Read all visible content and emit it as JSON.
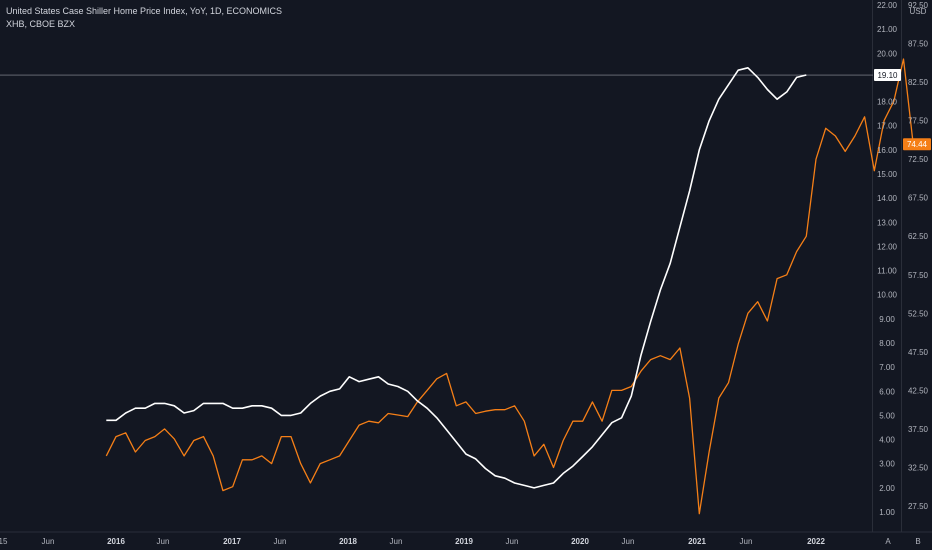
{
  "header": {
    "title": "United States Case Shiller Home Price Index, YoY, 1D, ECONOMICS",
    "subtitle": "XHB, CBOE BZX"
  },
  "colors": {
    "background": "#131722",
    "case_shiller": "#ffffff",
    "xhb": "#f57f17",
    "axis_text": "#b2b5be"
  },
  "chart_data": {
    "type": "line",
    "left_axis_ticks": [
      "22.00",
      "21.00",
      "20.00",
      "19.00",
      "18.00",
      "17.00",
      "16.00",
      "15.00",
      "14.00",
      "13.00",
      "12.00",
      "11.00",
      "10.00",
      "9.00",
      "8.00",
      "7.00",
      "6.00",
      "5.00",
      "4.00",
      "3.00",
      "2.00",
      "1.00"
    ],
    "right_axis_ticks": [
      "92.50",
      "87.50",
      "82.50",
      "77.50",
      "72.50",
      "67.50",
      "62.50",
      "57.50",
      "52.50",
      "47.50",
      "42.50",
      "37.50",
      "32.50",
      "27.50"
    ],
    "right_axis_unit": "USD",
    "x_tick_labels": [
      "15",
      "Jun",
      "2016",
      "Jun",
      "2017",
      "Jun",
      "2018",
      "Jun",
      "2019",
      "Jun",
      "2020",
      "Jun",
      "2021",
      "Jun",
      "2022"
    ],
    "bottom_right_labels": [
      "A",
      "B"
    ],
    "ylim_left": [
      0.5,
      22.3
    ],
    "ylim_right": [
      23.0,
      92.8
    ],
    "series": [
      {
        "name": "United States Case Shiller Home Price Index, YoY",
        "axis": "left",
        "last_value_label": "19.10",
        "points": [
          [
            "2015-12",
            4.8
          ],
          [
            "2016-01",
            4.8
          ],
          [
            "2016-02",
            5.1
          ],
          [
            "2016-03",
            5.3
          ],
          [
            "2016-04",
            5.3
          ],
          [
            "2016-05",
            5.5
          ],
          [
            "2016-06",
            5.5
          ],
          [
            "2016-07",
            5.4
          ],
          [
            "2016-08",
            5.1
          ],
          [
            "2016-09",
            5.2
          ],
          [
            "2016-10",
            5.5
          ],
          [
            "2016-11",
            5.5
          ],
          [
            "2016-12",
            5.5
          ],
          [
            "2017-01",
            5.3
          ],
          [
            "2017-02",
            5.3
          ],
          [
            "2017-03",
            5.4
          ],
          [
            "2017-04",
            5.4
          ],
          [
            "2017-05",
            5.3
          ],
          [
            "2017-06",
            5.0
          ],
          [
            "2017-07",
            5.0
          ],
          [
            "2017-08",
            5.1
          ],
          [
            "2017-09",
            5.5
          ],
          [
            "2017-10",
            5.8
          ],
          [
            "2017-11",
            6.0
          ],
          [
            "2017-12",
            6.1
          ],
          [
            "2018-01",
            6.6
          ],
          [
            "2018-02",
            6.4
          ],
          [
            "2018-03",
            6.5
          ],
          [
            "2018-04",
            6.6
          ],
          [
            "2018-05",
            6.3
          ],
          [
            "2018-06",
            6.2
          ],
          [
            "2018-07",
            6.0
          ],
          [
            "2018-08",
            5.6
          ],
          [
            "2018-09",
            5.3
          ],
          [
            "2018-10",
            4.9
          ],
          [
            "2018-11",
            4.4
          ],
          [
            "2018-12",
            3.9
          ],
          [
            "2019-01",
            3.4
          ],
          [
            "2019-02",
            3.2
          ],
          [
            "2019-03",
            2.8
          ],
          [
            "2019-04",
            2.5
          ],
          [
            "2019-05",
            2.4
          ],
          [
            "2019-06",
            2.2
          ],
          [
            "2019-07",
            2.1
          ],
          [
            "2019-08",
            2.0
          ],
          [
            "2019-09",
            2.1
          ],
          [
            "2019-10",
            2.2
          ],
          [
            "2019-11",
            2.6
          ],
          [
            "2019-12",
            2.9
          ],
          [
            "2020-01",
            3.3
          ],
          [
            "2020-02",
            3.7
          ],
          [
            "2020-03",
            4.2
          ],
          [
            "2020-04",
            4.7
          ],
          [
            "2020-05",
            4.9
          ],
          [
            "2020-06",
            5.8
          ],
          [
            "2020-07",
            7.5
          ],
          [
            "2020-08",
            8.9
          ],
          [
            "2020-09",
            10.2
          ],
          [
            "2020-10",
            11.3
          ],
          [
            "2020-11",
            12.8
          ],
          [
            "2020-12",
            14.3
          ],
          [
            "2021-01",
            16.0
          ],
          [
            "2021-02",
            17.2
          ],
          [
            "2021-03",
            18.1
          ],
          [
            "2021-04",
            18.7
          ],
          [
            "2021-05",
            19.3
          ],
          [
            "2021-06",
            19.4
          ],
          [
            "2021-07",
            19.0
          ],
          [
            "2021-08",
            18.5
          ],
          [
            "2021-09",
            18.1
          ],
          [
            "2021-10",
            18.4
          ],
          [
            "2021-11",
            19.0
          ],
          [
            "2021-12",
            19.1
          ]
        ]
      },
      {
        "name": "XHB, CBOE BZX",
        "axis": "right",
        "last_value_label": "74.44",
        "points": [
          [
            "2015-12",
            34.0
          ],
          [
            "2016-01",
            36.5
          ],
          [
            "2016-02",
            37.0
          ],
          [
            "2016-03",
            34.5
          ],
          [
            "2016-04",
            36.0
          ],
          [
            "2016-05",
            36.5
          ],
          [
            "2016-06",
            37.5
          ],
          [
            "2016-07",
            36.2
          ],
          [
            "2016-08",
            34.0
          ],
          [
            "2016-09",
            36.0
          ],
          [
            "2016-10",
            36.5
          ],
          [
            "2016-11",
            34.0
          ],
          [
            "2016-12",
            29.5
          ],
          [
            "2017-01",
            30.0
          ],
          [
            "2017-02",
            33.5
          ],
          [
            "2017-03",
            33.5
          ],
          [
            "2017-04",
            34.0
          ],
          [
            "2017-05",
            33.0
          ],
          [
            "2017-06",
            36.5
          ],
          [
            "2017-07",
            36.5
          ],
          [
            "2017-08",
            33.0
          ],
          [
            "2017-09",
            30.5
          ],
          [
            "2017-10",
            33.0
          ],
          [
            "2017-11",
            33.5
          ],
          [
            "2017-12",
            34.0
          ],
          [
            "2018-01",
            36.0
          ],
          [
            "2018-02",
            38.0
          ],
          [
            "2018-03",
            38.5
          ],
          [
            "2018-04",
            38.3
          ],
          [
            "2018-05",
            39.5
          ],
          [
            "2018-06",
            39.3
          ],
          [
            "2018-07",
            39.1
          ],
          [
            "2018-08",
            41.0
          ],
          [
            "2018-09",
            42.5
          ],
          [
            "2018-10",
            44.0
          ],
          [
            "2018-11",
            44.7
          ],
          [
            "2018-12",
            40.5
          ],
          [
            "2019-01",
            41.0
          ],
          [
            "2019-02",
            39.5
          ],
          [
            "2019-03",
            39.8
          ],
          [
            "2019-04",
            40.0
          ],
          [
            "2019-05",
            40.0
          ],
          [
            "2019-06",
            40.5
          ],
          [
            "2019-07",
            38.5
          ],
          [
            "2019-08",
            34.0
          ],
          [
            "2019-09",
            35.5
          ],
          [
            "2019-10",
            32.5
          ],
          [
            "2019-11",
            36.0
          ],
          [
            "2019-12",
            38.5
          ],
          [
            "2020-01",
            38.5
          ],
          [
            "2020-02",
            41.0
          ],
          [
            "2020-03",
            38.5
          ],
          [
            "2020-04",
            42.5
          ],
          [
            "2020-05",
            42.5
          ],
          [
            "2020-06",
            43.0
          ],
          [
            "2020-07",
            45.0
          ],
          [
            "2020-08",
            46.5
          ],
          [
            "2020-09",
            47.0
          ],
          [
            "2020-10",
            46.5
          ],
          [
            "2020-11",
            48.0
          ],
          [
            "2020-12",
            41.5
          ],
          [
            "2021-01",
            26.5
          ],
          [
            "2021-02",
            34.5
          ],
          [
            "2021-03",
            41.5
          ],
          [
            "2021-04",
            43.5
          ],
          [
            "2021-05",
            48.5
          ],
          [
            "2021-06",
            52.5
          ],
          [
            "2021-07",
            54.0
          ],
          [
            "2021-08",
            51.5
          ],
          [
            "2021-09",
            57.0
          ],
          [
            "2021-10",
            57.5
          ],
          [
            "2021-11",
            60.5
          ],
          [
            "2021-12",
            62.5
          ],
          [
            "2022-01",
            72.5
          ],
          [
            "2022-02",
            76.5
          ],
          [
            "2022-03",
            75.5
          ],
          [
            "2022-04",
            73.5
          ],
          [
            "2022-05",
            75.5
          ],
          [
            "2022-06",
            78.0
          ],
          [
            "2022-07",
            71.0
          ],
          [
            "2022-08",
            77.5
          ],
          [
            "2022-09",
            80.0
          ],
          [
            "2022-10",
            85.5
          ],
          [
            "2022-11",
            74.44
          ]
        ]
      }
    ]
  }
}
